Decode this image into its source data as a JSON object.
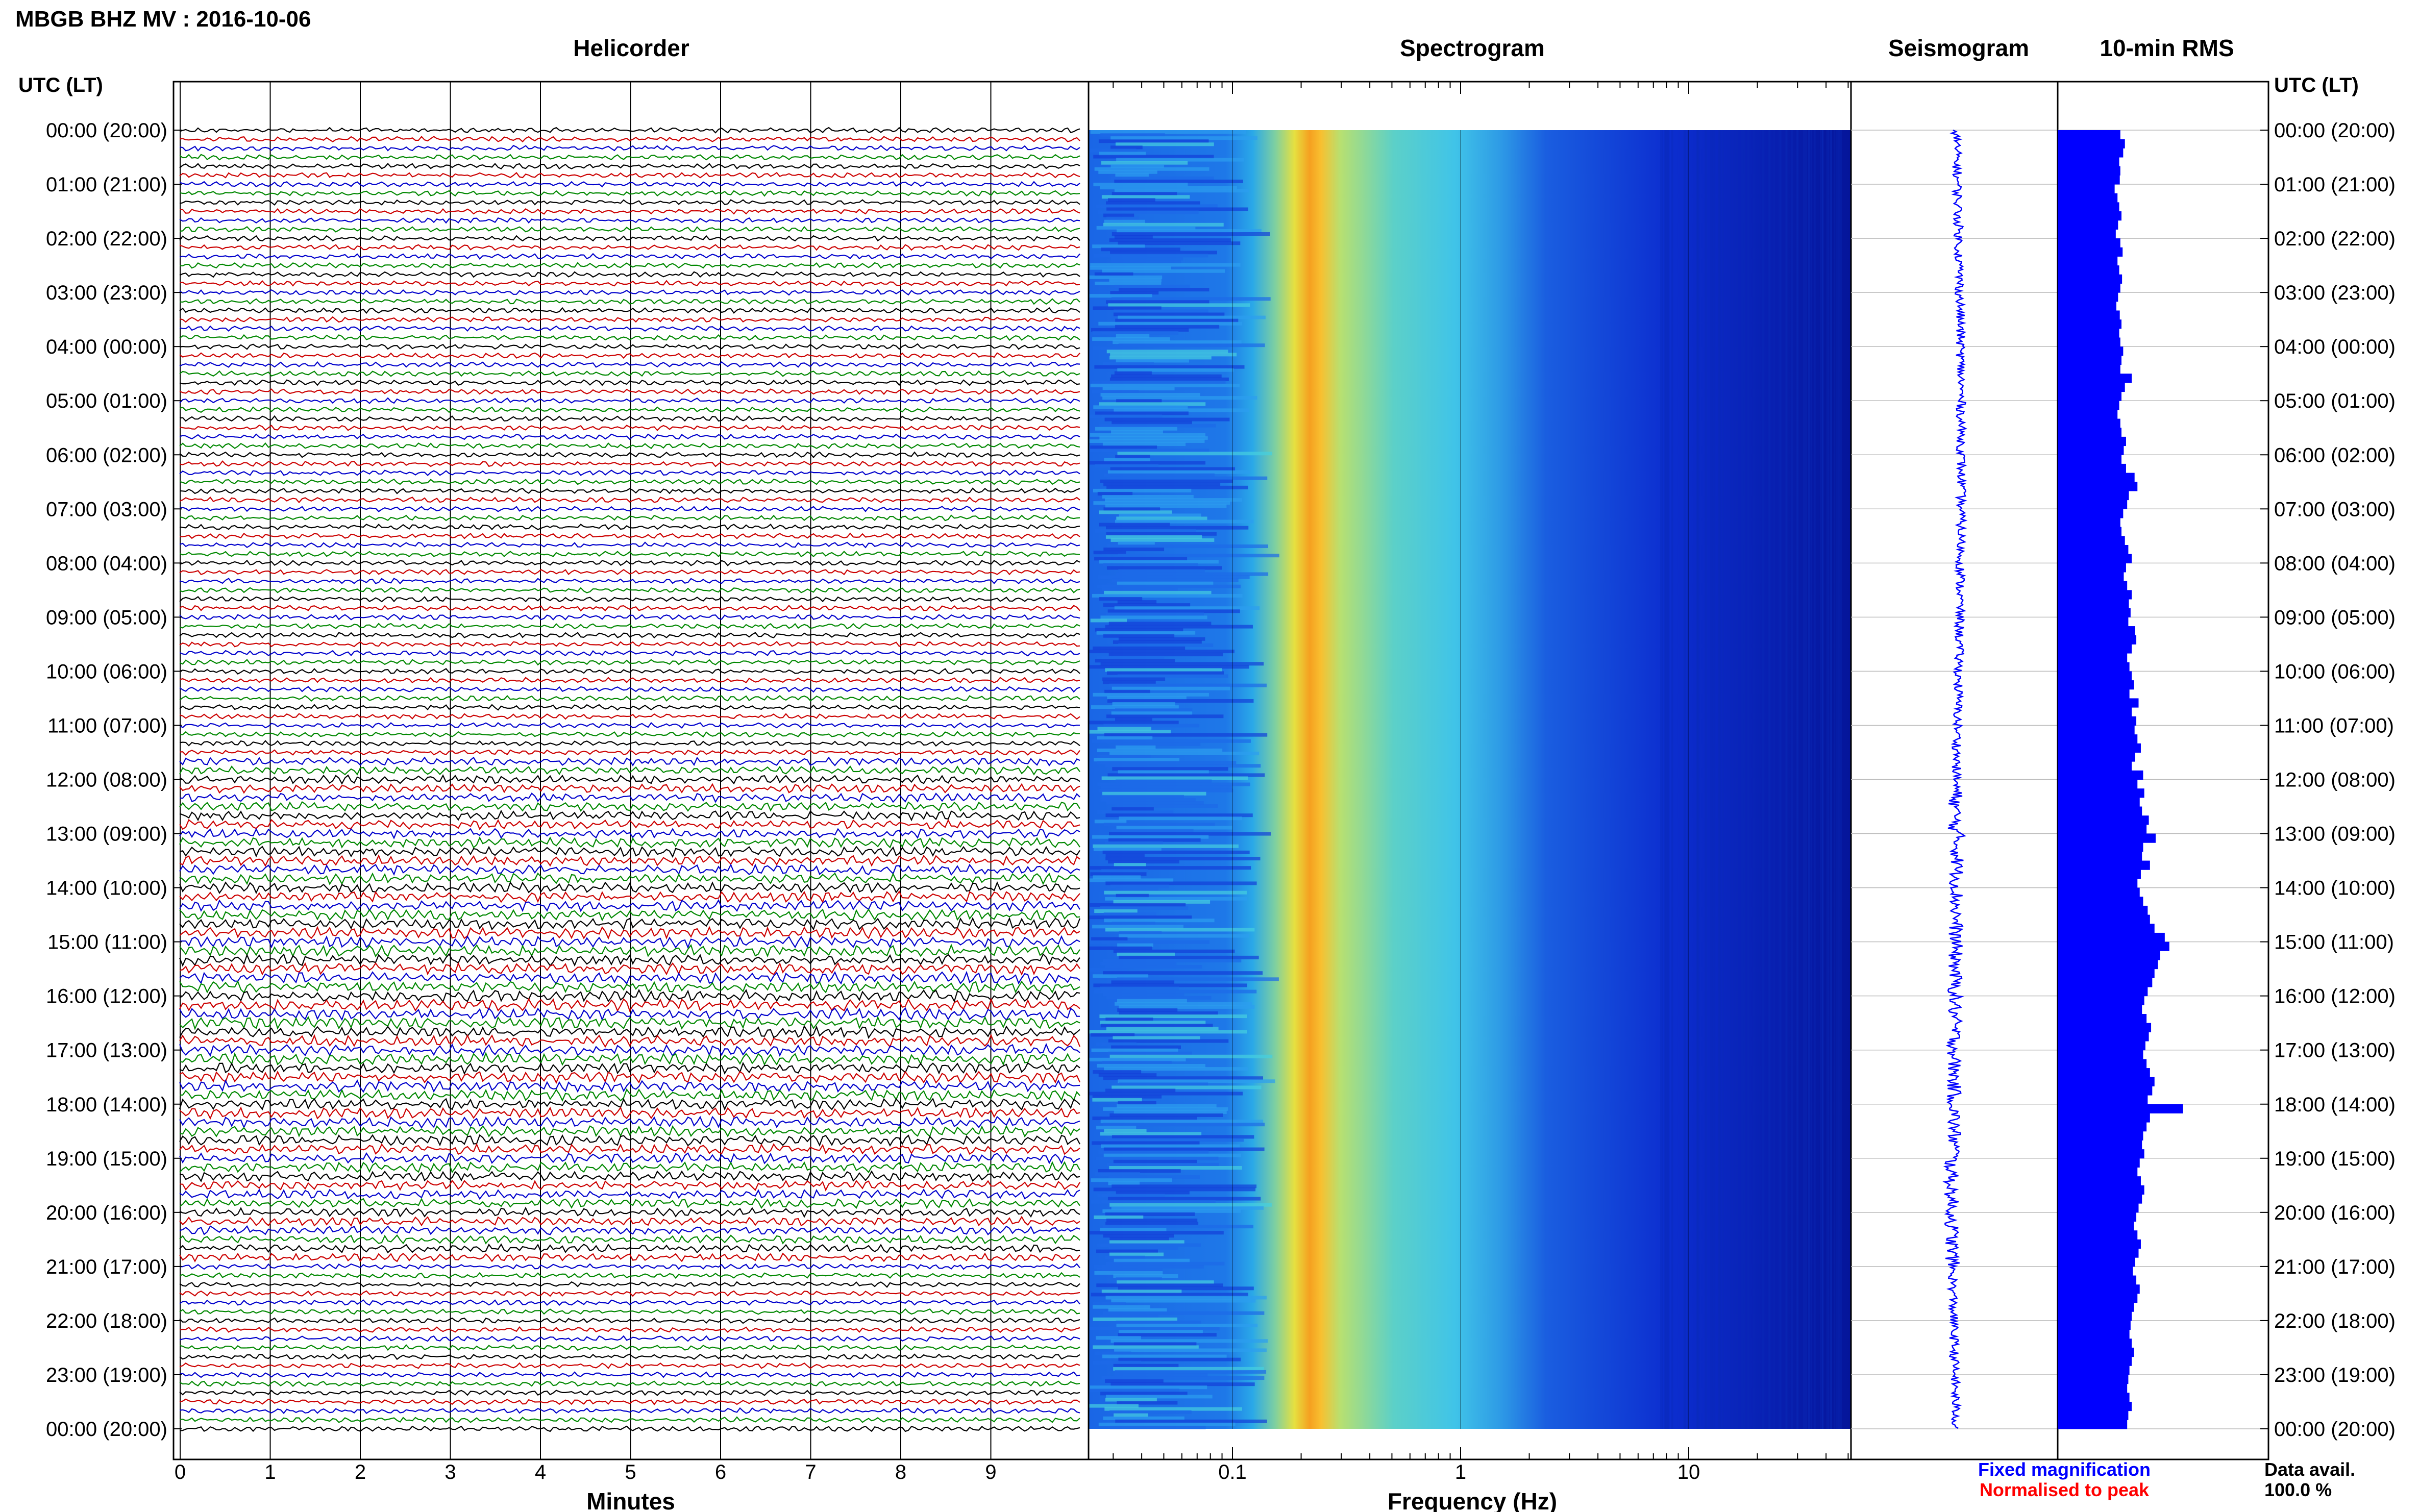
{
  "header": {
    "station_title": "MBGB BHZ MV : 2016-10-06",
    "tz_label_left": "UTC (LT)",
    "tz_label_right": "UTC (LT)"
  },
  "panels": {
    "helicorder_title": "Helicorder",
    "spectrogram_title": "Spectrogram",
    "seismogram_title": "Seismogram",
    "rms_title": "10-min RMS"
  },
  "axes": {
    "helicorder_xlabel": "Minutes",
    "spectrogram_xlabel": "Frequency (Hz)",
    "minute_ticks": [
      "0",
      "1",
      "2",
      "3",
      "4",
      "5",
      "6",
      "7",
      "8",
      "9"
    ],
    "freq_ticks": [
      "0.1",
      "1",
      "10"
    ]
  },
  "time_labels": [
    "00:00 (20:00)",
    "01:00 (21:00)",
    "02:00 (22:00)",
    "03:00 (23:00)",
    "04:00 (00:00)",
    "05:00 (01:00)",
    "06:00 (02:00)",
    "07:00 (03:00)",
    "08:00 (04:00)",
    "09:00 (05:00)",
    "10:00 (06:00)",
    "11:00 (07:00)",
    "12:00 (08:00)",
    "13:00 (09:00)",
    "14:00 (10:00)",
    "15:00 (11:00)",
    "16:00 (12:00)",
    "17:00 (13:00)",
    "18:00 (14:00)",
    "19:00 (15:00)",
    "20:00 (16:00)",
    "21:00 (17:00)",
    "22:00 (18:00)",
    "23:00 (19:00)",
    "00:00 (20:00)"
  ],
  "legend": {
    "fixed_label": "Fixed magnification",
    "fixed_color": "#0000ff",
    "normalised_label": "Normalised to peak",
    "normalised_color": "#ff0000"
  },
  "availability": {
    "label": "Data avail.",
    "value": "100.0 %"
  },
  "colors": {
    "helicorder_traces": [
      "#000000",
      "#cc0000",
      "#0000cc",
      "#008800"
    ],
    "rms_bar": "#0000ff",
    "seismogram": "#0000ff"
  },
  "chart_data": [
    {
      "type": "line",
      "name": "helicorder",
      "title": "Helicorder",
      "xlabel": "Minutes",
      "xlim": [
        0,
        10
      ],
      "rows_per_hour": 6,
      "hours": 24
    },
    {
      "type": "heatmap",
      "name": "spectrogram",
      "title": "Spectrogram",
      "xlabel": "Frequency (Hz)",
      "xscale": "log",
      "xlim": [
        0.01,
        50
      ],
      "peak_frequency_hz": 0.22
    },
    {
      "type": "bar",
      "name": "10-min RMS",
      "title": "10-min RMS",
      "orientation": "horizontal",
      "values": [
        1.1,
        1.18,
        1.15,
        1.08,
        1.1,
        1.09,
        1.0,
        1.05,
        1.08,
        1.12,
        1.06,
        1.02,
        1.1,
        1.14,
        1.05,
        1.08,
        1.13,
        1.1,
        1.06,
        1.03,
        1.09,
        1.12,
        1.08,
        1.1,
        1.15,
        1.12,
        1.1,
        1.3,
        1.18,
        1.12,
        1.08,
        1.05,
        1.1,
        1.12,
        1.2,
        1.16,
        1.12,
        1.2,
        1.35,
        1.4,
        1.25,
        1.22,
        1.15,
        1.1,
        1.12,
        1.18,
        1.24,
        1.3,
        1.2,
        1.16,
        1.22,
        1.3,
        1.25,
        1.28,
        1.24,
        1.36,
        1.38,
        1.3,
        1.22,
        1.26,
        1.3,
        1.34,
        1.26,
        1.42,
        1.3,
        1.38,
        1.35,
        1.4,
        1.46,
        1.36,
        1.3,
        1.5,
        1.4,
        1.52,
        1.44,
        1.48,
        1.6,
        1.56,
        1.72,
        1.5,
        1.48,
        1.62,
        1.46,
        1.4,
        1.44,
        1.5,
        1.58,
        1.62,
        1.7,
        1.88,
        1.96,
        1.8,
        1.76,
        1.7,
        1.66,
        1.58,
        1.52,
        1.48,
        1.56,
        1.64,
        1.6,
        1.54,
        1.5,
        1.56,
        1.62,
        1.7,
        1.66,
        1.58,
        2.2,
        1.62,
        1.56,
        1.5,
        1.48,
        1.52,
        1.44,
        1.4,
        1.46,
        1.52,
        1.48,
        1.42,
        1.38,
        1.34,
        1.4,
        1.46,
        1.42,
        1.36,
        1.32,
        1.38,
        1.44,
        1.4,
        1.34,
        1.3,
        1.28,
        1.26,
        1.3,
        1.34,
        1.3,
        1.26,
        1.24,
        1.22,
        1.26,
        1.3,
        1.24,
        1.22
      ]
    }
  ]
}
